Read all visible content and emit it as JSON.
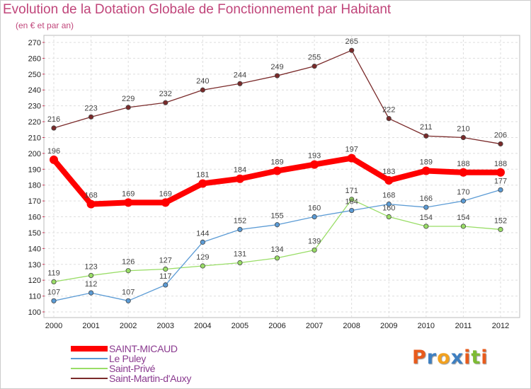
{
  "header": {
    "title": "Evolution de la Dotation Globale de Fonctionnement par Habitant",
    "subtitle": "(en € et par an)"
  },
  "logo": {
    "letters": [
      "P",
      "r",
      "o",
      "x",
      "i",
      "t",
      "i"
    ],
    "colors": [
      "#e85b1c",
      "#3e7fc1",
      "#f2a11f",
      "#3e7fc1",
      "#e85b1c",
      "#7dbb34",
      "#e85b1c"
    ]
  },
  "chart_data": {
    "type": "line",
    "title": "Evolution de la Dotation Globale de Fonctionnement par Habitant",
    "subtitle": "(en € et par an)",
    "x": [
      "2000",
      "2001",
      "2002",
      "2003",
      "2004",
      "2005",
      "2006",
      "2007",
      "2008",
      "2009",
      "2010",
      "2011",
      "2012"
    ],
    "ylim": [
      100,
      270
    ],
    "yticks": [
      100,
      110,
      120,
      130,
      140,
      150,
      160,
      170,
      180,
      190,
      200,
      210,
      220,
      230,
      240,
      250,
      260,
      270
    ],
    "grid": true,
    "legend_position": "bottom-left",
    "series": [
      {
        "name": "Saint-Martin-d'Auxy",
        "color": "#7a2a2a",
        "values": [
          216,
          223,
          229,
          232,
          240,
          244,
          249,
          255,
          265,
          222,
          211,
          210,
          206
        ],
        "labels": [
          "216",
          "223",
          "229",
          "232",
          "240",
          "244",
          "249",
          "255",
          "265",
          "222",
          "211",
          "210",
          "206"
        ]
      },
      {
        "name": "Saint-Privé",
        "color": "#99dd66",
        "values": [
          119,
          123,
          126,
          127,
          129,
          131,
          134,
          139,
          171,
          160,
          154,
          154,
          152
        ],
        "labels": [
          "119",
          "123",
          "126",
          "127",
          "129",
          "131",
          "134",
          "139",
          "171",
          "160",
          "154",
          "154",
          "152"
        ]
      },
      {
        "name": "Le Puley",
        "color": "#5b9bd5",
        "values": [
          107,
          112,
          107,
          117,
          144,
          152,
          155,
          160,
          164,
          168,
          166,
          170,
          177
        ],
        "labels": [
          "107",
          "112",
          "107",
          "117",
          "144",
          "152",
          "155",
          "160",
          "164",
          "168",
          "166",
          "170",
          "177"
        ]
      },
      {
        "name": "SAINT-MICAUD",
        "color": "#ff0000",
        "values": [
          196,
          168,
          169,
          169,
          181,
          184,
          189,
          193,
          197,
          183,
          189,
          188,
          188
        ],
        "labels": [
          "196",
          "168",
          "169",
          "169",
          "181",
          "184",
          "189",
          "193",
          "197",
          "183",
          "189",
          "188",
          "188"
        ]
      }
    ],
    "legend": [
      {
        "name": "SAINT-MICAUD",
        "color": "#ff0000"
      },
      {
        "name": "Le Puley",
        "color": "#5b9bd5"
      },
      {
        "name": "Saint-Privé",
        "color": "#99dd66"
      },
      {
        "name": "Saint-Martin-d'Auxy",
        "color": "#7a2a2a"
      }
    ]
  }
}
